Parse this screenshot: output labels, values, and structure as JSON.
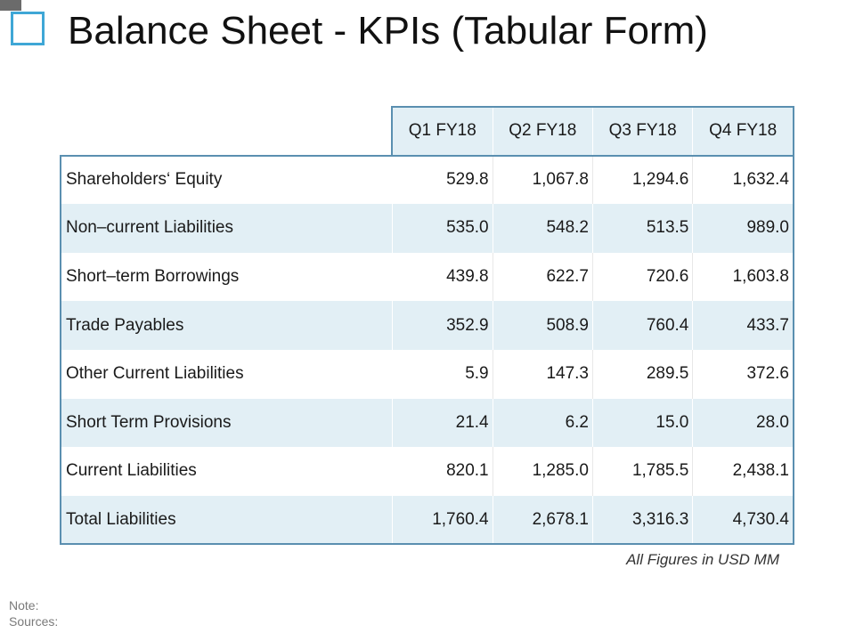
{
  "title": "Balance Sheet - KPIs (Tabular Form)",
  "table": {
    "columns": [
      "Q1 FY18",
      "Q2 FY18",
      "Q3 FY18",
      "Q4 FY18"
    ],
    "rows": [
      {
        "label": "Shareholders‘ Equity",
        "values": [
          "529.8",
          "1,067.8",
          "1,294.6",
          "1,632.4"
        ]
      },
      {
        "label": "Non–current Liabilities",
        "values": [
          "535.0",
          "548.2",
          "513.5",
          "989.0"
        ]
      },
      {
        "label": "Short–term Borrowings",
        "values": [
          "439.8",
          "622.7",
          "720.6",
          "1,603.8"
        ]
      },
      {
        "label": "Trade Payables",
        "values": [
          "352.9",
          "508.9",
          "760.4",
          "433.7"
        ]
      },
      {
        "label": "Other Current Liabilities",
        "values": [
          "5.9",
          "147.3",
          "289.5",
          "372.6"
        ]
      },
      {
        "label": "Short Term Provisions",
        "values": [
          "21.4",
          "6.2",
          "15.0",
          "28.0"
        ]
      },
      {
        "label": "Current Liabilities",
        "values": [
          "820.1",
          "1,285.0",
          "1,785.5",
          "2,438.1"
        ]
      },
      {
        "label": "Total Liabilities",
        "values": [
          "1,760.4",
          "2,678.1",
          "3,316.3",
          "4,730.4"
        ]
      }
    ]
  },
  "footnote": "All Figures in USD MM",
  "note_label": "Note:",
  "sources_label": "Sources:",
  "colors": {
    "accent": "#3fa7d6",
    "table_border": "#5a8fb0",
    "band_fill": "#e2eff5"
  }
}
